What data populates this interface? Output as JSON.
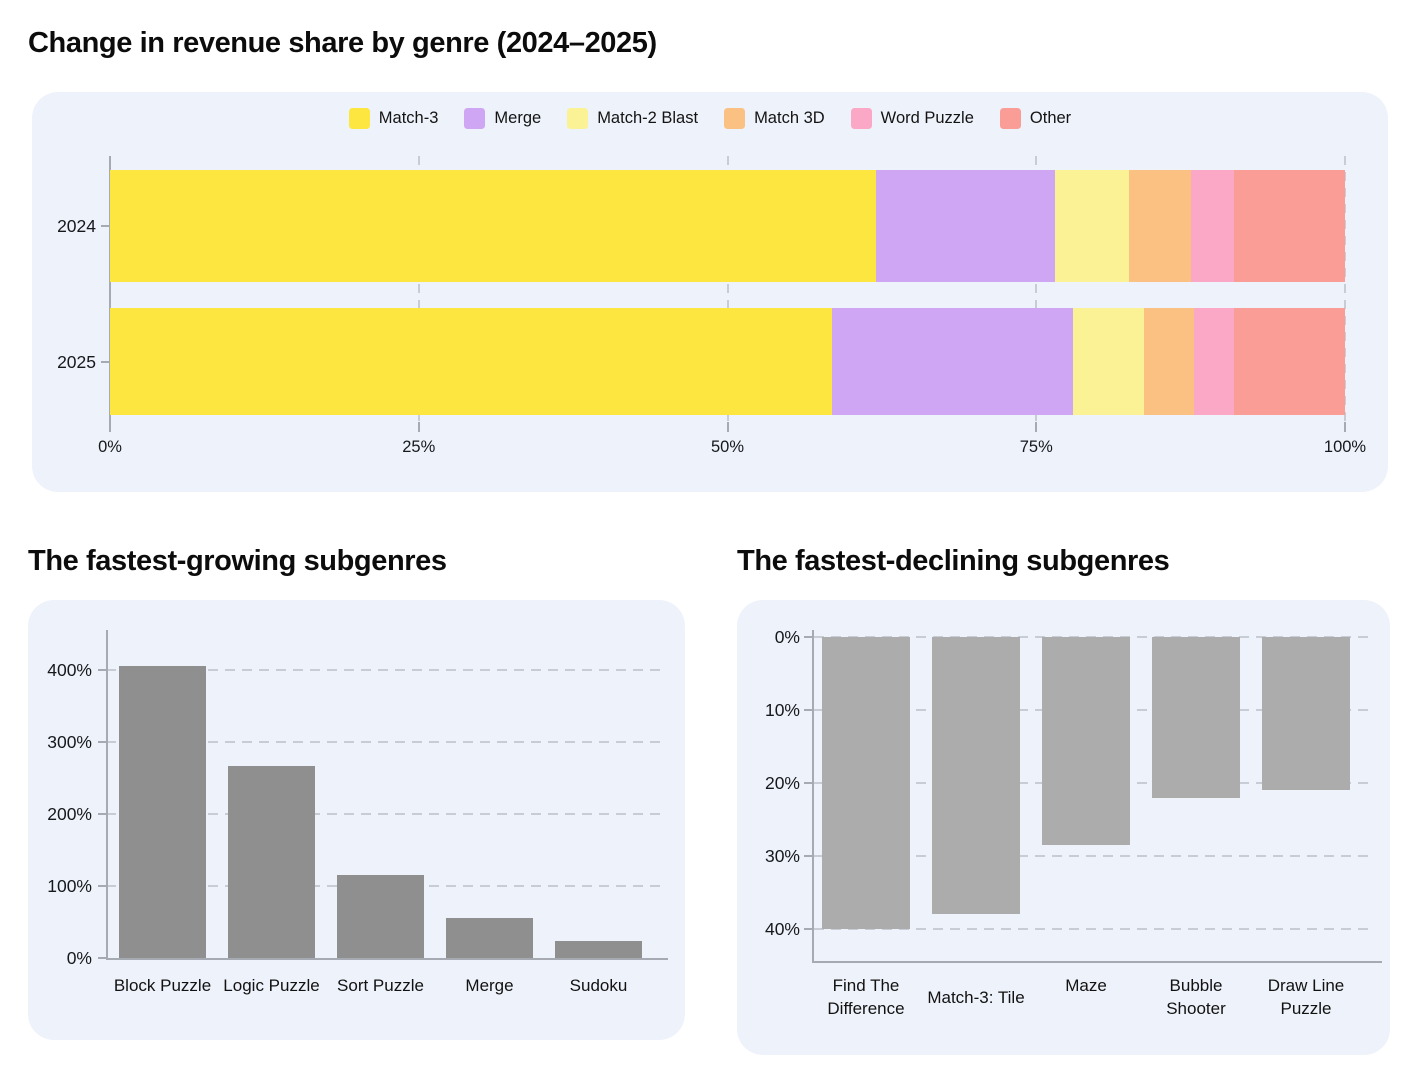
{
  "page": {
    "background": "#ffffff",
    "panel_background": "#EEF2FA"
  },
  "chart_data": [
    {
      "type": "bar",
      "variant": "horizontal-stacked-100",
      "title": "Change in revenue share by genre (2024–2025)",
      "categories": [
        "2024",
        "2025"
      ],
      "series": [
        {
          "name": "Match-3",
          "color": "#FCE63F",
          "values": [
            62,
            58.5
          ]
        },
        {
          "name": "Merge",
          "color": "#CFA6F3",
          "values": [
            14.5,
            19.5
          ]
        },
        {
          "name": "Match-2 Blast",
          "color": "#FBF195",
          "values": [
            6,
            5.75
          ]
        },
        {
          "name": "Match 3D",
          "color": "#FBC183",
          "values": [
            5,
            4
          ]
        },
        {
          "name": "Word Puzzle",
          "color": "#FAA8C5",
          "values": [
            3.5,
            3.25
          ]
        },
        {
          "name": "Other",
          "color": "#FA9D97",
          "values": [
            9,
            9
          ]
        }
      ],
      "x_ticks": [
        "0%",
        "25%",
        "50%",
        "75%",
        "100%"
      ],
      "xlim": [
        0,
        100
      ],
      "legend_position": "top",
      "grid": "vertical-dashed"
    },
    {
      "type": "bar",
      "title": "The fastest-growing subgenres",
      "categories": [
        "Block Puzzle",
        "Logic Puzzle",
        "Sort Puzzle",
        "Merge",
        "Sudoku"
      ],
      "values": [
        405,
        267,
        115,
        55,
        23
      ],
      "unit": "%",
      "bar_color": "#8F8F8F",
      "y_ticks": [
        "0%",
        "100%",
        "200%",
        "300%",
        "400%"
      ],
      "ylim": [
        0,
        450
      ],
      "grid": "horizontal-dashed"
    },
    {
      "type": "bar",
      "title": "The fastest-declining subgenres",
      "categories": [
        "Find The Difference",
        "Match-3: Tile",
        "Maze",
        "Bubble Shooter",
        "Draw Line Puzzle"
      ],
      "category_lines": [
        [
          "Find The",
          "Difference"
        ],
        [
          "Match-3: Tile"
        ],
        [
          "Maze"
        ],
        [
          "Bubble",
          "Shooter"
        ],
        [
          "Draw Line",
          "Puzzle"
        ]
      ],
      "values": [
        -40,
        -38,
        -28.5,
        -22,
        -21
      ],
      "unit": "%",
      "bar_color": "#ACACAC",
      "y_ticks": [
        "0%",
        "10%",
        "20%",
        "30%",
        "40%"
      ],
      "ylim": [
        0,
        -45
      ],
      "grid": "horizontal-dashed",
      "axis_inverted": true
    }
  ]
}
